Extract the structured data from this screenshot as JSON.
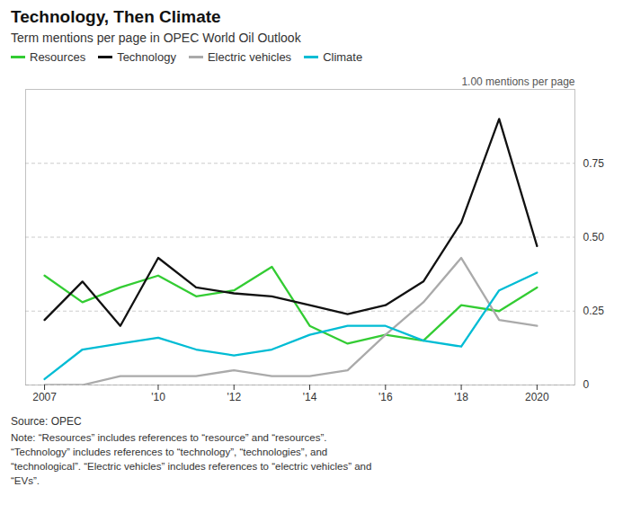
{
  "chart_data": {
    "type": "line",
    "title": "Technology, Then Climate",
    "subtitle": "Term mentions per page in OPEC World Oil Outlook",
    "annotation": "1.00 mentions per page",
    "source": "Source: OPEC",
    "note": "Note: “Resources” includes references to “resource” and “resources”.\n“Technology” includes references to “technology”, “technologies”, and\n“technological”. “Electric vehicles” includes references to “electric vehicles” and\n“EVs”.",
    "x": [
      2007,
      2008,
      2009,
      2010,
      2011,
      2012,
      2013,
      2014,
      2015,
      2016,
      2017,
      2018,
      2019,
      2020
    ],
    "series": [
      {
        "name": "Resources",
        "color": "#33cc33",
        "values": [
          0.37,
          0.28,
          0.33,
          0.37,
          0.3,
          0.32,
          0.4,
          0.2,
          0.14,
          0.17,
          0.15,
          0.27,
          0.25,
          0.33
        ]
      },
      {
        "name": "Technology",
        "color": "#111111",
        "values": [
          0.22,
          0.35,
          0.2,
          0.43,
          0.33,
          0.31,
          0.3,
          0.27,
          0.24,
          0.27,
          0.35,
          0.55,
          0.9,
          0.47
        ]
      },
      {
        "name": "Electric vehicles",
        "color": "#aaaaaa",
        "values": [
          0.0,
          0.0,
          0.03,
          0.03,
          0.03,
          0.05,
          0.03,
          0.03,
          0.05,
          0.17,
          0.28,
          0.43,
          0.22,
          0.2
        ]
      },
      {
        "name": "Climate",
        "color": "#00bcd4",
        "values": [
          0.02,
          0.12,
          0.14,
          0.16,
          0.12,
          0.1,
          0.12,
          0.17,
          0.2,
          0.2,
          0.15,
          0.13,
          0.32,
          0.38
        ]
      }
    ],
    "xlim": [
      2006.5,
      2021.0
    ],
    "xticks": [
      2007,
      {
        "value": 2010,
        "label": "'10"
      },
      {
        "value": 2012,
        "label": "'12"
      },
      {
        "value": 2014,
        "label": "'14"
      },
      {
        "value": 2016,
        "label": "'16"
      },
      {
        "value": 2018,
        "label": "'18"
      },
      2020
    ],
    "ylim": [
      0,
      1.0
    ],
    "yticks": [
      0,
      0.25,
      {
        "value": 0.5,
        "label": "0.50"
      },
      0.75
    ],
    "grid": true,
    "legend": "upper left"
  }
}
